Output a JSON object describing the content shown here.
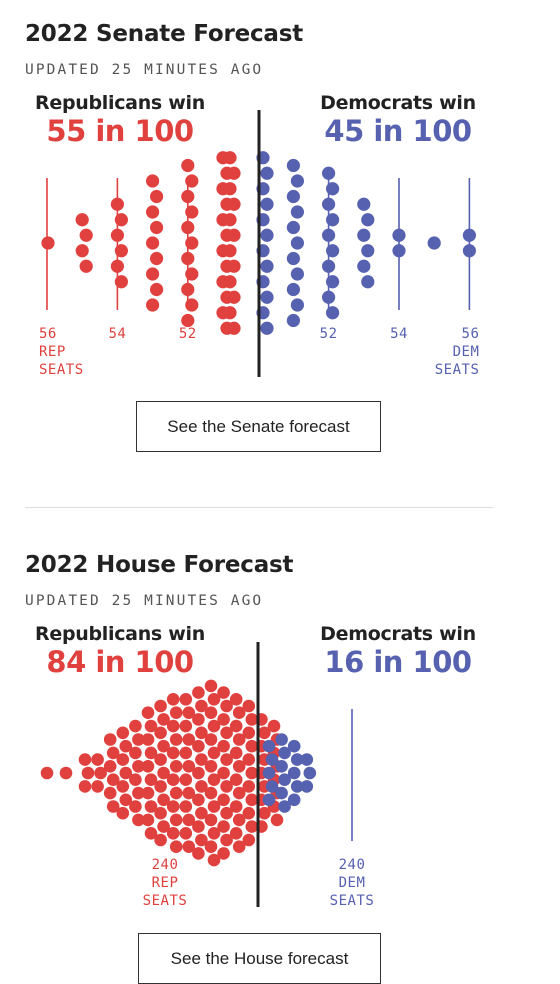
{
  "colors": {
    "rep": "#e0413e",
    "dem": "#5661b0",
    "divider": "#222222",
    "text": "#222222"
  },
  "senate": {
    "title": "2022 Senate Forecast",
    "updated": "UPDATED 25 MINUTES AGO",
    "rep_label": "Republicans win",
    "dem_label": "Democrats win",
    "rep_odds": "55 in 100",
    "dem_odds": "45 in 100",
    "button": "See the Senate forecast"
  },
  "house": {
    "title": "2022 House Forecast",
    "updated": "UPDATED 25 MINUTES AGO",
    "rep_label": "Republicans win",
    "dem_label": "Democrats win",
    "rep_odds": "84 in 100",
    "dem_odds": "16 in 100",
    "button": "See the House forecast"
  },
  "chart_data": [
    {
      "type": "scatter",
      "title": "2022 Senate Forecast",
      "x_unit": "Republican seats",
      "xlim": [
        56,
        44
      ],
      "markers": [
        {
          "value": 56,
          "party": "rep",
          "lines": [
            "56",
            "REP",
            "SEATS"
          ]
        },
        {
          "value": 54,
          "party": "rep",
          "lines": [
            "54"
          ]
        },
        {
          "value": 52,
          "party": "rep",
          "lines": [
            "52"
          ]
        },
        {
          "value": 48,
          "party": "dem",
          "lines": [
            "52"
          ]
        },
        {
          "value": 46,
          "party": "dem",
          "lines": [
            "54"
          ]
        },
        {
          "value": 44,
          "party": "dem",
          "lines": [
            "56",
            "DEM",
            "SEATS"
          ]
        }
      ],
      "series": [
        {
          "party": "rep",
          "columns": [
            {
              "seats": 56,
              "count": 1
            },
            {
              "seats": 55,
              "count": 4
            },
            {
              "seats": 54,
              "count": 6
            },
            {
              "seats": 53,
              "count": 9
            },
            {
              "seats": 52,
              "count": 11
            },
            {
              "seats": 51,
              "count": 12
            },
            {
              "seats": 50,
              "count": 12
            }
          ]
        },
        {
          "party": "dem",
          "columns": [
            {
              "seats": 50,
              "count": 12
            },
            {
              "seats": 49,
              "count": 11
            },
            {
              "seats": 48,
              "count": 10
            },
            {
              "seats": 47,
              "count": 6
            },
            {
              "seats": 46,
              "count": 2
            },
            {
              "seats": 45,
              "count": 1
            },
            {
              "seats": 44,
              "count": 2
            }
          ]
        }
      ]
    },
    {
      "type": "scatter",
      "title": "2022 House Forecast",
      "x_unit": "Republican seats",
      "markers": [
        {
          "value": 240,
          "party": "rep",
          "lines": [
            "240",
            "REP",
            "SEATS"
          ]
        },
        {
          "value": 195,
          "party": "dem",
          "lines": [
            "240",
            "DEM",
            "SEATS"
          ]
        }
      ],
      "series": [
        {
          "party": "rep",
          "columns": [
            1,
            1,
            3,
            3,
            6,
            7,
            8,
            10,
            11,
            12,
            12,
            13,
            14,
            13,
            12,
            11,
            9,
            8
          ]
        },
        {
          "party": "dem",
          "columns": [
            5,
            6,
            5,
            3
          ]
        }
      ]
    }
  ]
}
